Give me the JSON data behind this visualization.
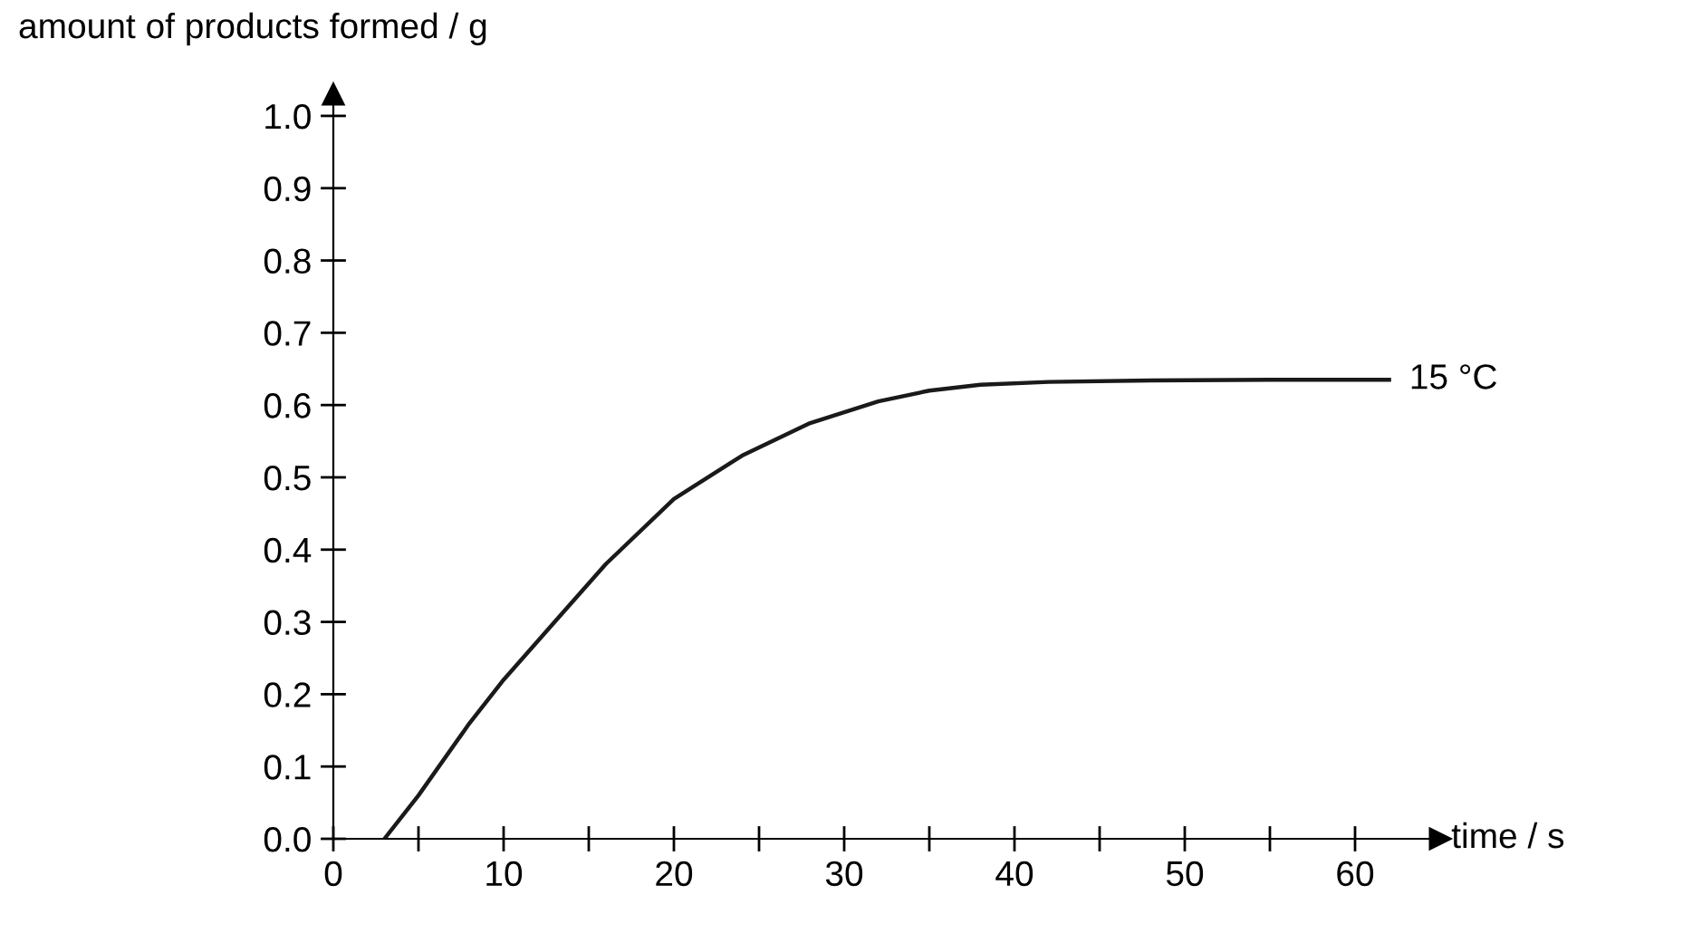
{
  "chart_data": {
    "type": "line",
    "xlabel": "time / s",
    "ylabel": "amount of products formed / g",
    "x": [
      3,
      5,
      8,
      10,
      13,
      16,
      20,
      24,
      28,
      32,
      35,
      38,
      42,
      48,
      55,
      62
    ],
    "series": [
      {
        "color": "#1a1a1a",
        "values": [
          0,
          0.06,
          0.16,
          0.22,
          0.3,
          0.38,
          0.47,
          0.53,
          0.575,
          0.605,
          0.62,
          0.628,
          0.632,
          0.634,
          0.635,
          0.635
        ]
      }
    ],
    "annotations": [
      {
        "text": "15 °C",
        "x": 62,
        "y": 0.635
      }
    ],
    "xlim": [
      0,
      65
    ],
    "ylim": [
      0,
      1.03
    ],
    "xticks": [
      0,
      {
        "value": 5,
        "label": null
      },
      10,
      {
        "value": 15,
        "label": null
      },
      20,
      {
        "value": 25,
        "label": null
      },
      30,
      {
        "value": 35,
        "label": null
      },
      40,
      {
        "value": 45,
        "label": null
      },
      50,
      {
        "value": 55,
        "label": null
      },
      60
    ],
    "yticks": [
      {
        "value": 0,
        "label": "0.0"
      },
      0.1,
      0.2,
      0.3,
      0.4,
      0.5,
      0.6,
      0.7,
      0.8,
      0.9,
      {
        "value": 1,
        "label": "1.0"
      }
    ],
    "grid": false,
    "legend": false,
    "marker": "none",
    "line_style": "solid"
  }
}
